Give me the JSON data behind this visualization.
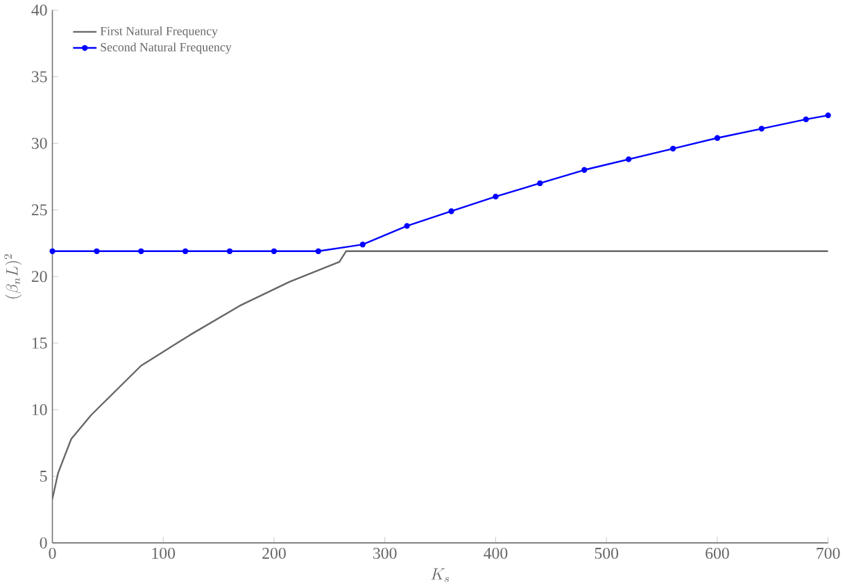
{
  "chart_data": {
    "type": "line",
    "xlabel": "K_s",
    "ylabel": "(\\beta_n L)^2",
    "xlim": [
      0,
      700
    ],
    "ylim": [
      0,
      40
    ],
    "xticks": [
      0,
      100,
      200,
      300,
      400,
      500,
      600,
      700
    ],
    "yticks": [
      0,
      5,
      10,
      15,
      20,
      25,
      30,
      35,
      40
    ],
    "legend": "top left",
    "series": [
      {
        "name": "First Natural Frequency",
        "color": "#666666",
        "marker": "none",
        "x": [
          0,
          5,
          10,
          17,
          35,
          80,
          124,
          169,
          214,
          259,
          265,
          280,
          320,
          360,
          400,
          440,
          480,
          520,
          560,
          600,
          640,
          680,
          700
        ],
        "values": [
          3.3,
          5.2,
          6.3,
          7.8,
          9.6,
          13.3,
          15.6,
          17.8,
          19.6,
          21.1,
          21.9,
          21.9,
          21.9,
          21.9,
          21.9,
          21.9,
          21.9,
          21.9,
          21.9,
          21.9,
          21.9,
          21.9,
          21.9
        ]
      },
      {
        "name": "Second Natural Frequency",
        "color": "#0000ff",
        "marker": "circle",
        "x": [
          0,
          40,
          80,
          120,
          160,
          200,
          240,
          280,
          320,
          360,
          400,
          440,
          480,
          520,
          560,
          600,
          640,
          680,
          700
        ],
        "values": [
          21.9,
          21.9,
          21.9,
          21.9,
          21.9,
          21.9,
          21.9,
          22.4,
          23.8,
          24.9,
          26.0,
          27.0,
          28.0,
          28.8,
          29.6,
          30.4,
          31.1,
          31.8,
          32.1
        ]
      }
    ]
  }
}
